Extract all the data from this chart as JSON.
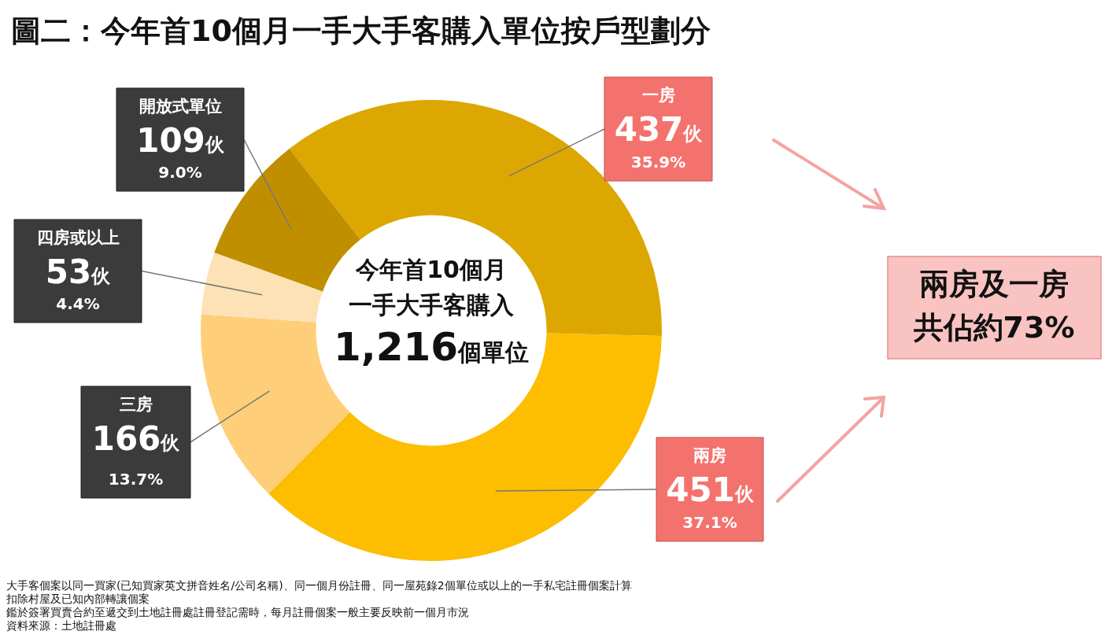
{
  "chart_data": {
    "type": "donut",
    "title": "圖二：今年首10個月一手大手客購入單位按戶型劃分",
    "categories": [
      "一房",
      "兩房",
      "三房",
      "四房或以上",
      "開放式單位"
    ],
    "values": [
      437,
      451,
      166,
      53,
      109
    ],
    "colors": [
      "#dca700",
      "#fdbd00",
      "#fecf78",
      "#fde2b6",
      "#bf8f00"
    ],
    "value_labels": [
      "437伙",
      "451伙",
      "166伙",
      "53伙",
      "109伙"
    ],
    "legend": false,
    "annotations": [
      {
        "text": "35.9%",
        "x": "一房"
      },
      {
        "text": "37.1%",
        "x": "兩房"
      },
      {
        "text": "13.7%",
        "x": "三房"
      },
      {
        "text": "4.4%",
        "x": "四房或以上"
      },
      {
        "text": "9.0%",
        "x": "開放式單位"
      },
      "今年首10個月",
      "一手大手客購入",
      "1,216個單位",
      "兩房及一房",
      "共佔約73%",
      "大手客個案以同一買家(已知買家英文拼音姓名/公司名稱)、同一個月份註冊、同一屋苑錄2個單位或以上的一手私宅註冊個案計算",
      "扣除村屋及已知內部轉讓個案",
      "鑑於簽署買賣合約至遞交到土地註冊處註冊登記需時，每月註冊個案一般主要反映前一個月市況",
      "資料來源：土地註冊處"
    ]
  }
}
